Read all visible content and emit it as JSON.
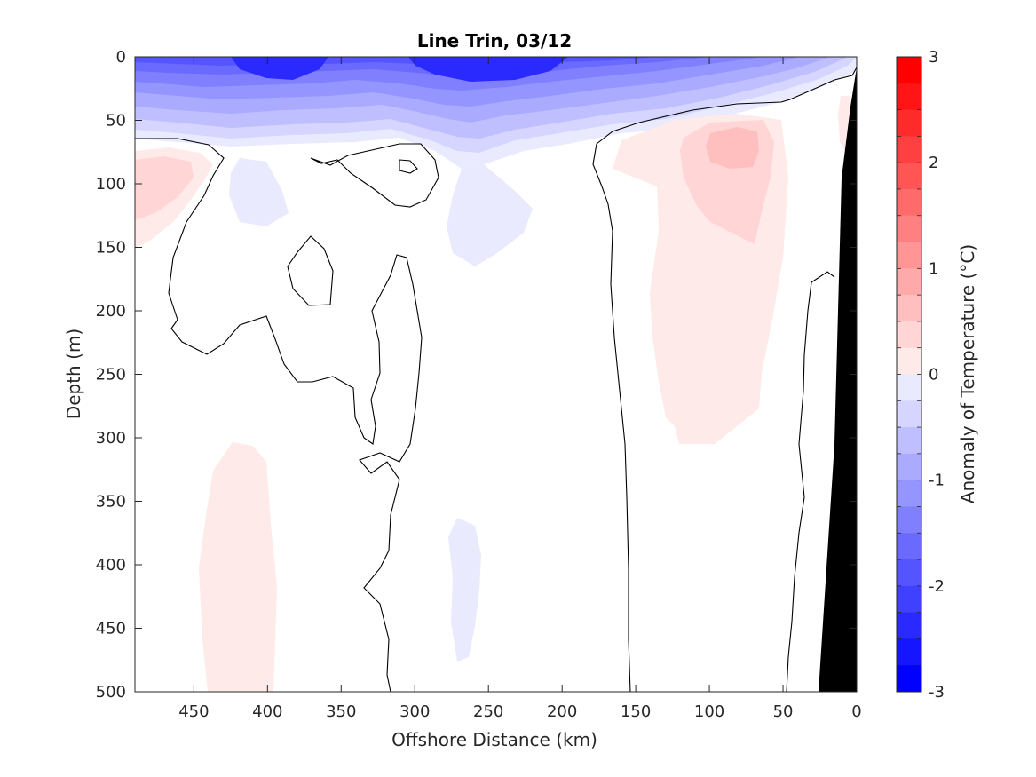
{
  "chart_data": {
    "type": "heatmap",
    "subtype": "filled-contour-section",
    "title": "Line Trin, 03/12",
    "xlabel": "Offshore Distance (km)",
    "ylabel": "Depth (m)",
    "colorbar_label": "Anomaly of Temperature (°C)",
    "xlim": [
      490,
      0
    ],
    "ylim": [
      0,
      500
    ],
    "x_reversed": true,
    "y_reversed": true,
    "x_ticks": [
      "450",
      "400",
      "350",
      "300",
      "250",
      "200",
      "150",
      "100",
      "50",
      "0"
    ],
    "y_ticks": [
      "0",
      "50",
      "100",
      "150",
      "200",
      "250",
      "300",
      "350",
      "400",
      "450",
      "500"
    ],
    "colorbar_ticks": [
      "3",
      "2",
      "1",
      "0",
      "-1",
      "-2",
      "-3"
    ],
    "clim": [
      -3,
      3
    ],
    "contour_step": 0.25,
    "colors": {
      "warm_max": "#ff0000",
      "cold_max": "#0000ff",
      "zero": "#ffffff",
      "topography": "#000000",
      "contour_line": "#000000"
    },
    "regions": [
      {
        "name": "surface cold layer",
        "anomaly": -2.0,
        "x_range": [
          490,
          0
        ],
        "depth_range": [
          0,
          80
        ]
      },
      {
        "name": "cold core",
        "anomaly": -3.0,
        "x_range": [
          420,
          360
        ],
        "depth_range": [
          0,
          20
        ]
      },
      {
        "name": "cold core",
        "anomaly": -2.75,
        "x_range": [
          290,
          190
        ],
        "depth_range": [
          0,
          20
        ]
      },
      {
        "name": "subsurface cool patch",
        "anomaly": -0.25,
        "x_range": [
          430,
          390
        ],
        "depth_range": [
          80,
          130
        ]
      },
      {
        "name": "subsurface cool patch",
        "anomaly": -0.25,
        "x_range": [
          280,
          220
        ],
        "depth_range": [
          90,
          165
        ]
      },
      {
        "name": "deep cool patch",
        "anomaly": -0.25,
        "x_range": [
          280,
          260
        ],
        "depth_range": [
          365,
          475
        ]
      },
      {
        "name": "offshore warm patch",
        "anomaly": 0.5,
        "x_range": [
          490,
          450
        ],
        "depth_range": [
          75,
          150
        ]
      },
      {
        "name": "deep warm patch",
        "anomaly": 0.25,
        "x_range": [
          440,
          390
        ],
        "depth_range": [
          300,
          500
        ]
      },
      {
        "name": "nearshore warm patch",
        "anomaly": 0.75,
        "x_range": [
          150,
          40
        ],
        "depth_range": [
          45,
          300
        ]
      },
      {
        "name": "nearshore warm core",
        "anomaly": 1.0,
        "x_range": [
          110,
          60
        ],
        "depth_range": [
          55,
          90
        ]
      }
    ],
    "zero_contours": "black lines",
    "topography": "black wedge from 0 km at 10 m depth to about 25 km at 500 m depth",
    "legend": "colorbar-right",
    "grid": false
  }
}
